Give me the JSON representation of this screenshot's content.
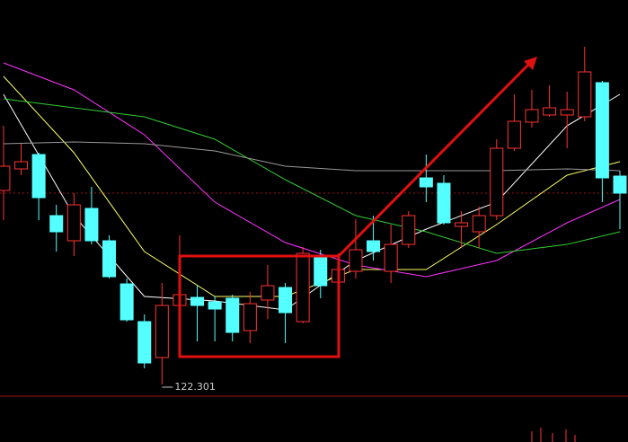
{
  "chart_data": {
    "type": "candlestick",
    "up_color": "#ff3232",
    "down_color": "#54ffff",
    "xlim": [
      -0.2,
      35.46
    ],
    "ylim": [
      121.7,
      143.7
    ],
    "x": [
      0,
      1,
      2,
      3,
      4,
      5,
      6,
      7,
      8,
      9,
      10,
      11,
      12,
      13,
      14,
      15,
      16,
      17,
      18,
      19,
      20,
      21,
      22,
      23,
      24,
      25,
      26,
      27,
      28,
      29,
      30,
      31,
      32,
      33,
      34,
      35
    ],
    "open": [
      133.1,
      134.3,
      135.1,
      131.7,
      130.3,
      132.1,
      130.3,
      127.9,
      125.8,
      123.8,
      126.7,
      127.15,
      126.9,
      127.1,
      125.3,
      127.0,
      127.7,
      125.8,
      129.4,
      128.0,
      128.6,
      130.3,
      128.6,
      130.1,
      133.8,
      133.5,
      131.1,
      130.8,
      131.7,
      135.45,
      136.9,
      137.3,
      137.3,
      137.2,
      139.1,
      133.9
    ],
    "high": [
      136.7,
      135.7,
      135.2,
      132.3,
      132.95,
      133.3,
      130.6,
      128.2,
      126.2,
      127.95,
      130.6,
      127.8,
      127.2,
      127.3,
      127.45,
      128.95,
      127.95,
      129.95,
      129.8,
      129.6,
      131.5,
      131.7,
      131.2,
      131.95,
      135.1,
      133.95,
      131.95,
      132.2,
      135.95,
      138.45,
      138.7,
      138.95,
      138.6,
      141.1,
      139.2,
      134.2
    ],
    "low": [
      131.45,
      133.95,
      131.45,
      129.7,
      129.45,
      130.1,
      128.2,
      125.8,
      123.2,
      122.301,
      126.45,
      124.7,
      124.7,
      124.7,
      124.6,
      125.95,
      124.6,
      125.7,
      127.1,
      127.8,
      128.2,
      129.2,
      127.95,
      129.9,
      132.45,
      131.2,
      129.95,
      129.9,
      131.45,
      135.3,
      136.6,
      137.2,
      135.45,
      136.95,
      132.45,
      130.95
    ],
    "close": [
      134.45,
      134.7,
      132.7,
      130.8,
      132.3,
      130.3,
      128.3,
      125.9,
      123.5,
      126.7,
      127.3,
      126.7,
      126.5,
      125.2,
      126.8,
      127.8,
      126.3,
      129.6,
      127.8,
      128.7,
      129.8,
      129.7,
      130.1,
      131.7,
      133.3,
      131.3,
      131.3,
      131.7,
      135.45,
      136.95,
      137.6,
      137.7,
      137.6,
      139.7,
      133.8,
      132.95
    ],
    "series": [
      {
        "color": "#ffffff",
        "x": [
          0,
          4,
          8,
          12,
          16,
          20,
          24,
          28,
          32,
          35
        ],
        "values": [
          138.45,
          131.7,
          127.2,
          126.95,
          126.45,
          129.2,
          130.95,
          132.45,
          136.7,
          138.45
        ]
      },
      {
        "color": "#ffff66",
        "x": [
          0,
          4,
          8,
          12,
          16,
          20,
          24,
          28,
          32,
          35
        ],
        "values": [
          139.45,
          135.2,
          129.7,
          127.2,
          127.2,
          128.7,
          128.7,
          131.2,
          133.95,
          134.7
        ]
      },
      {
        "color": "#ff33ff",
        "x": [
          0,
          4,
          8,
          12,
          16,
          20,
          24,
          28,
          32,
          35
        ],
        "values": [
          140.2,
          138.7,
          136.2,
          132.45,
          130.2,
          128.95,
          128.3,
          129.2,
          131.3,
          132.6
        ]
      },
      {
        "color": "#33cc33",
        "x": [
          0,
          4,
          8,
          12,
          16,
          20,
          24,
          28,
          32,
          35
        ],
        "values": [
          138.2,
          137.7,
          137.2,
          135.95,
          133.7,
          131.7,
          130.8,
          129.6,
          130.1,
          130.8
        ]
      },
      {
        "color": "#999999",
        "x": [
          0,
          4,
          8,
          12,
          16,
          20,
          24,
          28,
          32,
          35
        ],
        "values": [
          135.7,
          135.8,
          135.7,
          135.3,
          134.45,
          134.2,
          134.2,
          134.2,
          134.3,
          134.2
        ]
      }
    ]
  }
}
